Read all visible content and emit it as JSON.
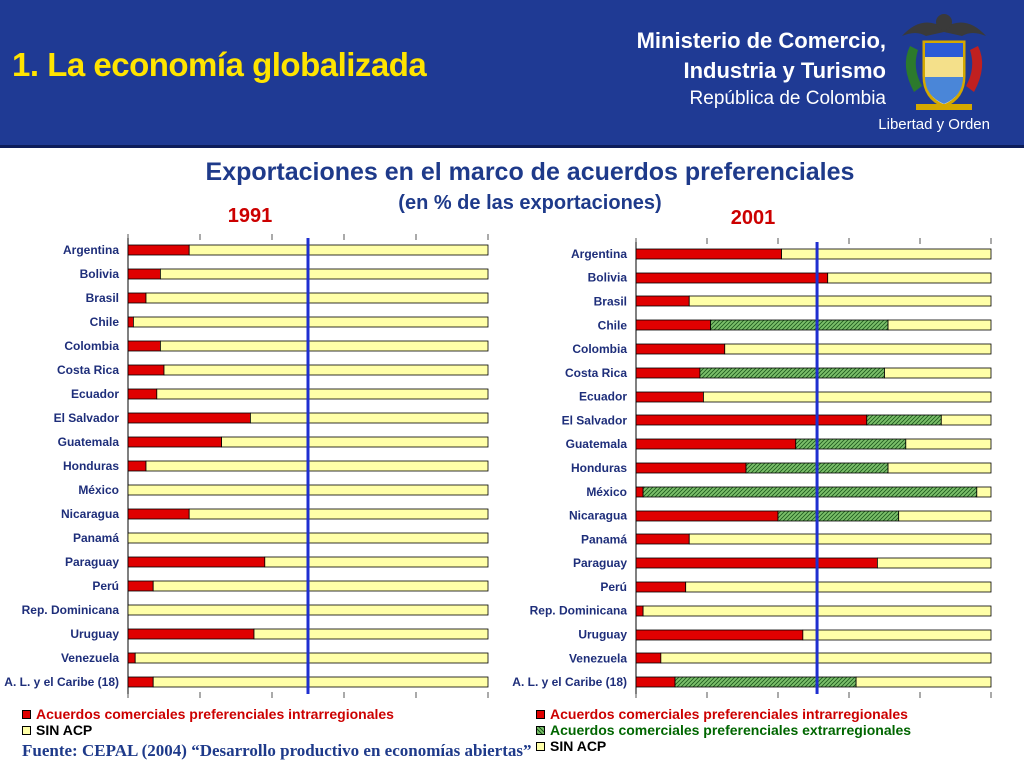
{
  "header": {
    "title": "1. La economía globalizada",
    "ministry_line1": "Ministerio de Comercio,",
    "ministry_line2": "Industria y Turismo",
    "ministry_line3": "República de Colombia",
    "motto": "Libertad y Orden",
    "background_color": "#1f3a94",
    "title_color": "#ffe400"
  },
  "title": "Exportaciones en el marco de acuerdos preferenciales",
  "subtitle": "(en % de las exportaciones)",
  "legend_left": {
    "intra": "Acuerdos comerciales preferenciales intrarregionales",
    "sin": "SIN ACP"
  },
  "legend_right": {
    "intra": "Acuerdos comerciales preferenciales intrarregionales",
    "extra": "Acuerdos comerciales preferenciales extrarregionales",
    "sin": "SIN ACP"
  },
  "source": "Fuente: CEPAL (2004) “Desarrollo productivo en economías abiertas”",
  "colors": {
    "intra": "#e00000",
    "extra": "#7bbf6a",
    "sin": "#ffffa8",
    "reference_line": "#1f2fd0",
    "legend_intra_text": "#cc0000",
    "legend_extra_text": "#006600"
  },
  "chart_data": [
    {
      "type": "bar",
      "stacked": true,
      "orientation": "horizontal",
      "title": "1991",
      "categories": [
        "Argentina",
        "Bolivia",
        "Brasil",
        "Chile",
        "Colombia",
        "Costa Rica",
        "Ecuador",
        "El Salvador",
        "Guatemala",
        "Honduras",
        "México",
        "Nicaragua",
        "Panamá",
        "Paraguay",
        "Perú",
        "Rep. Dominicana",
        "Uruguay",
        "Venezuela",
        "A. L. y el Caribe (18)"
      ],
      "series": [
        {
          "name": "Acuerdos comerciales preferenciales intrarregionales",
          "values": [
            17,
            9,
            5,
            1.5,
            9,
            10,
            8,
            34,
            26,
            5,
            0,
            17,
            0,
            38,
            7,
            0,
            35,
            2,
            7
          ]
        },
        {
          "name": "SIN ACP",
          "values": [
            83,
            91,
            95,
            98.5,
            91,
            90,
            92,
            66,
            74,
            95,
            100,
            83,
            100,
            62,
            93,
            100,
            65,
            98,
            93
          ]
        }
      ],
      "reference_line": 50,
      "xlim": [
        0,
        100
      ]
    },
    {
      "type": "bar",
      "stacked": true,
      "orientation": "horizontal",
      "title": "2001",
      "categories": [
        "Argentina",
        "Bolivia",
        "Brasil",
        "Chile",
        "Colombia",
        "Costa Rica",
        "Ecuador",
        "El Salvador",
        "Guatemala",
        "Honduras",
        "México",
        "Nicaragua",
        "Panamá",
        "Paraguay",
        "Perú",
        "Rep. Dominicana",
        "Uruguay",
        "Venezuela",
        "A. L. y el Caribe (18)"
      ],
      "series": [
        {
          "name": "Acuerdos comerciales preferenciales intrarregionales",
          "values": [
            41,
            54,
            15,
            21,
            25,
            18,
            19,
            65,
            45,
            31,
            2,
            40,
            15,
            68,
            14,
            2,
            47,
            7,
            11
          ]
        },
        {
          "name": "Acuerdos comerciales preferenciales extrarregionales",
          "values": [
            0,
            0,
            0,
            50,
            0,
            52,
            0,
            21,
            31,
            40,
            94,
            34,
            0,
            0,
            0,
            0,
            0,
            0,
            51
          ]
        },
        {
          "name": "SIN ACP",
          "values": [
            59,
            46,
            85,
            29,
            75,
            30,
            81,
            14,
            24,
            29,
            4,
            26,
            85,
            32,
            86,
            98,
            53,
            93,
            38
          ]
        }
      ],
      "reference_line": 51,
      "xlim": [
        0,
        100
      ]
    }
  ]
}
